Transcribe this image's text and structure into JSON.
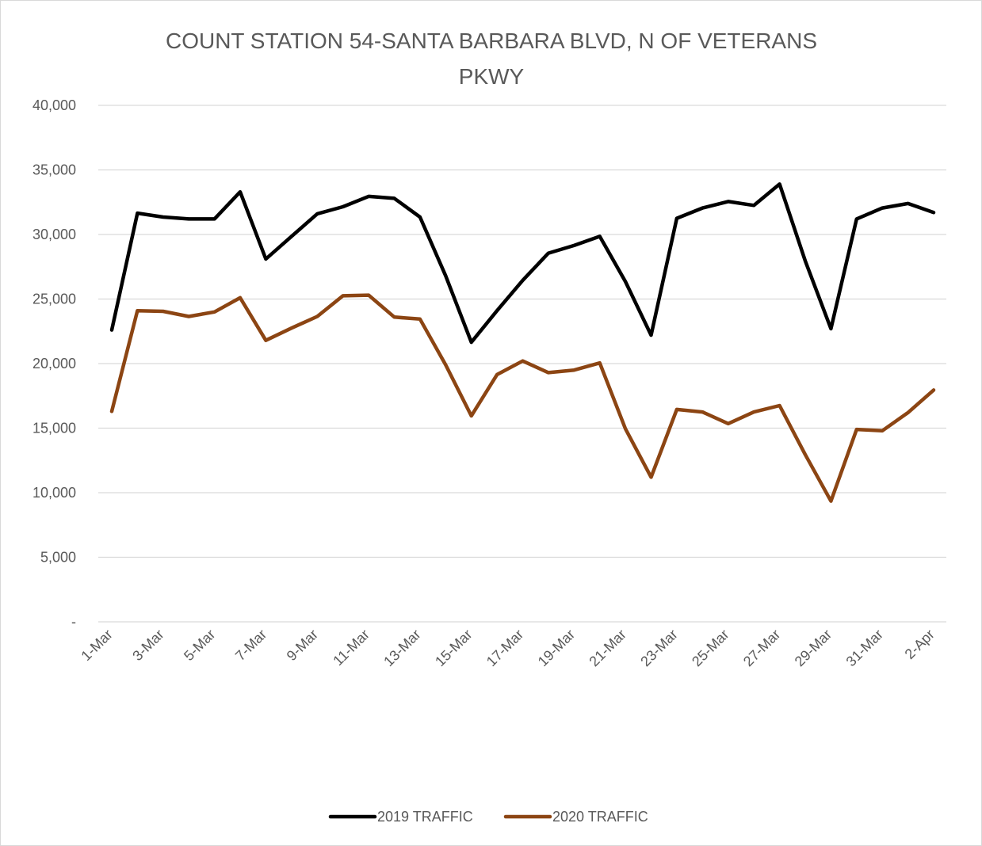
{
  "chart_data": {
    "type": "line",
    "title_lines": [
      "COUNT STATION 54-SANTA BARBARA BLVD, N OF VETERANS",
      "PKWY"
    ],
    "xlabel": "",
    "ylabel": "",
    "ylim": [
      0,
      40000
    ],
    "y_ticks": [
      0,
      5000,
      10000,
      15000,
      20000,
      25000,
      30000,
      35000,
      40000
    ],
    "y_tick_labels": [
      "-",
      "5,000",
      "10,000",
      "15,000",
      "20,000",
      "25,000",
      "30,000",
      "35,000",
      "40,000"
    ],
    "x": [
      "1-Mar",
      "2-Mar",
      "3-Mar",
      "4-Mar",
      "5-Mar",
      "6-Mar",
      "7-Mar",
      "8-Mar",
      "9-Mar",
      "10-Mar",
      "11-Mar",
      "12-Mar",
      "13-Mar",
      "14-Mar",
      "15-Mar",
      "16-Mar",
      "17-Mar",
      "18-Mar",
      "19-Mar",
      "20-Mar",
      "21-Mar",
      "22-Mar",
      "23-Mar",
      "24-Mar",
      "25-Mar",
      "26-Mar",
      "27-Mar",
      "28-Mar",
      "29-Mar",
      "30-Mar",
      "31-Mar",
      "1-Apr",
      "2-Apr"
    ],
    "x_tick_labels": [
      "1-Mar",
      "3-Mar",
      "5-Mar",
      "7-Mar",
      "9-Mar",
      "11-Mar",
      "13-Mar",
      "15-Mar",
      "17-Mar",
      "19-Mar",
      "21-Mar",
      "23-Mar",
      "25-Mar",
      "27-Mar",
      "29-Mar",
      "31-Mar",
      "2-Apr"
    ],
    "series": [
      {
        "name": "2019 TRAFFIC",
        "color": "#000000",
        "values": [
          22600,
          31650,
          31350,
          31200,
          31200,
          33300,
          28100,
          29850,
          31600,
          32150,
          32950,
          32800,
          31350,
          26800,
          21650,
          24100,
          26450,
          28550,
          29150,
          29850,
          26350,
          22200,
          31250,
          32050,
          32550,
          32250,
          33900,
          27950,
          22700,
          31200,
          32050,
          32400,
          31700
        ]
      },
      {
        "name": "2020 TRAFFIC",
        "color": "#8c4513",
        "values": [
          16300,
          24100,
          24050,
          23650,
          24000,
          25100,
          21800,
          22750,
          23650,
          25250,
          25300,
          23600,
          23450,
          19900,
          15950,
          19150,
          20200,
          19300,
          19500,
          20050,
          14950,
          11200,
          16450,
          16250,
          15350,
          16250,
          16750,
          12950,
          9350,
          14900,
          14800,
          16200,
          17950
        ]
      }
    ],
    "legend_position": "bottom",
    "grid": true
  }
}
